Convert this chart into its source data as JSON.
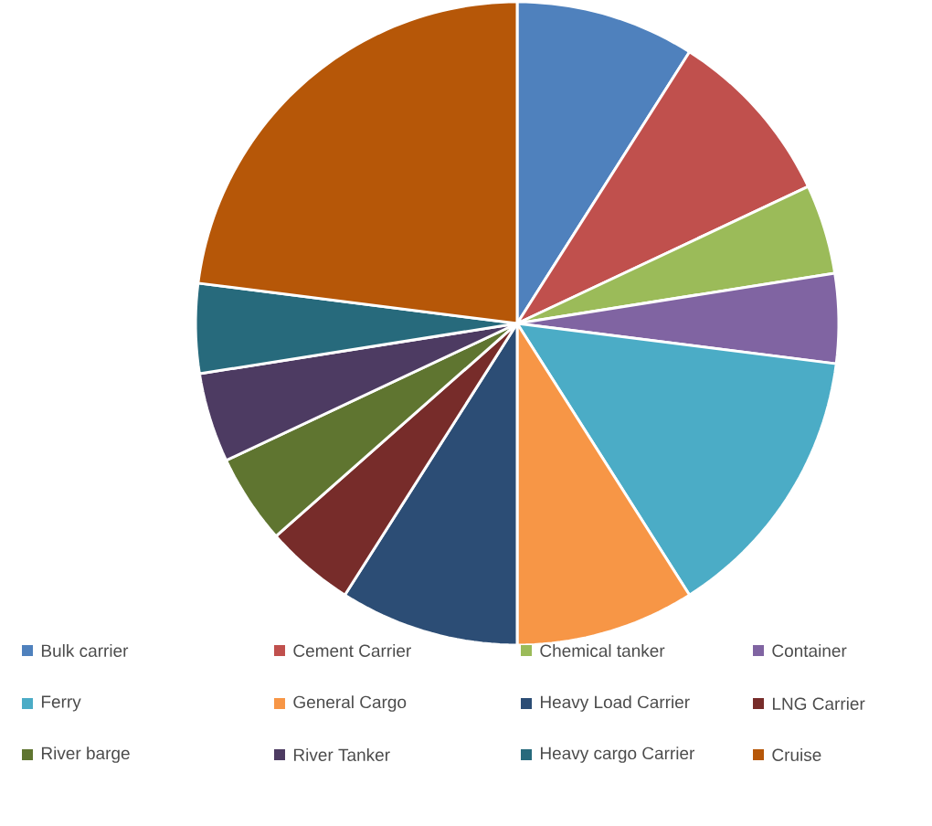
{
  "chart_data": {
    "type": "pie",
    "categories": [
      "Bulk carrier",
      "Cement Carrier",
      "Chemical tanker",
      "Container",
      "Ferry",
      "General Cargo",
      "Heavy Load Carrier",
      "LNG Carrier",
      "River barge",
      "River Tanker",
      "Heavy cargo Carrier",
      "Cruise"
    ],
    "values": [
      9,
      9,
      4.5,
      4.5,
      14,
      9,
      9,
      4.5,
      4.5,
      4.5,
      4.5,
      23
    ],
    "colors": [
      "#4f81bd",
      "#c0504d",
      "#9bbb59",
      "#8064a2",
      "#4bacc6",
      "#f79646",
      "#2c4d75",
      "#772c2a",
      "#5f7530",
      "#4d3b62",
      "#276a7c",
      "#b65708"
    ],
    "legend": "bottom"
  }
}
